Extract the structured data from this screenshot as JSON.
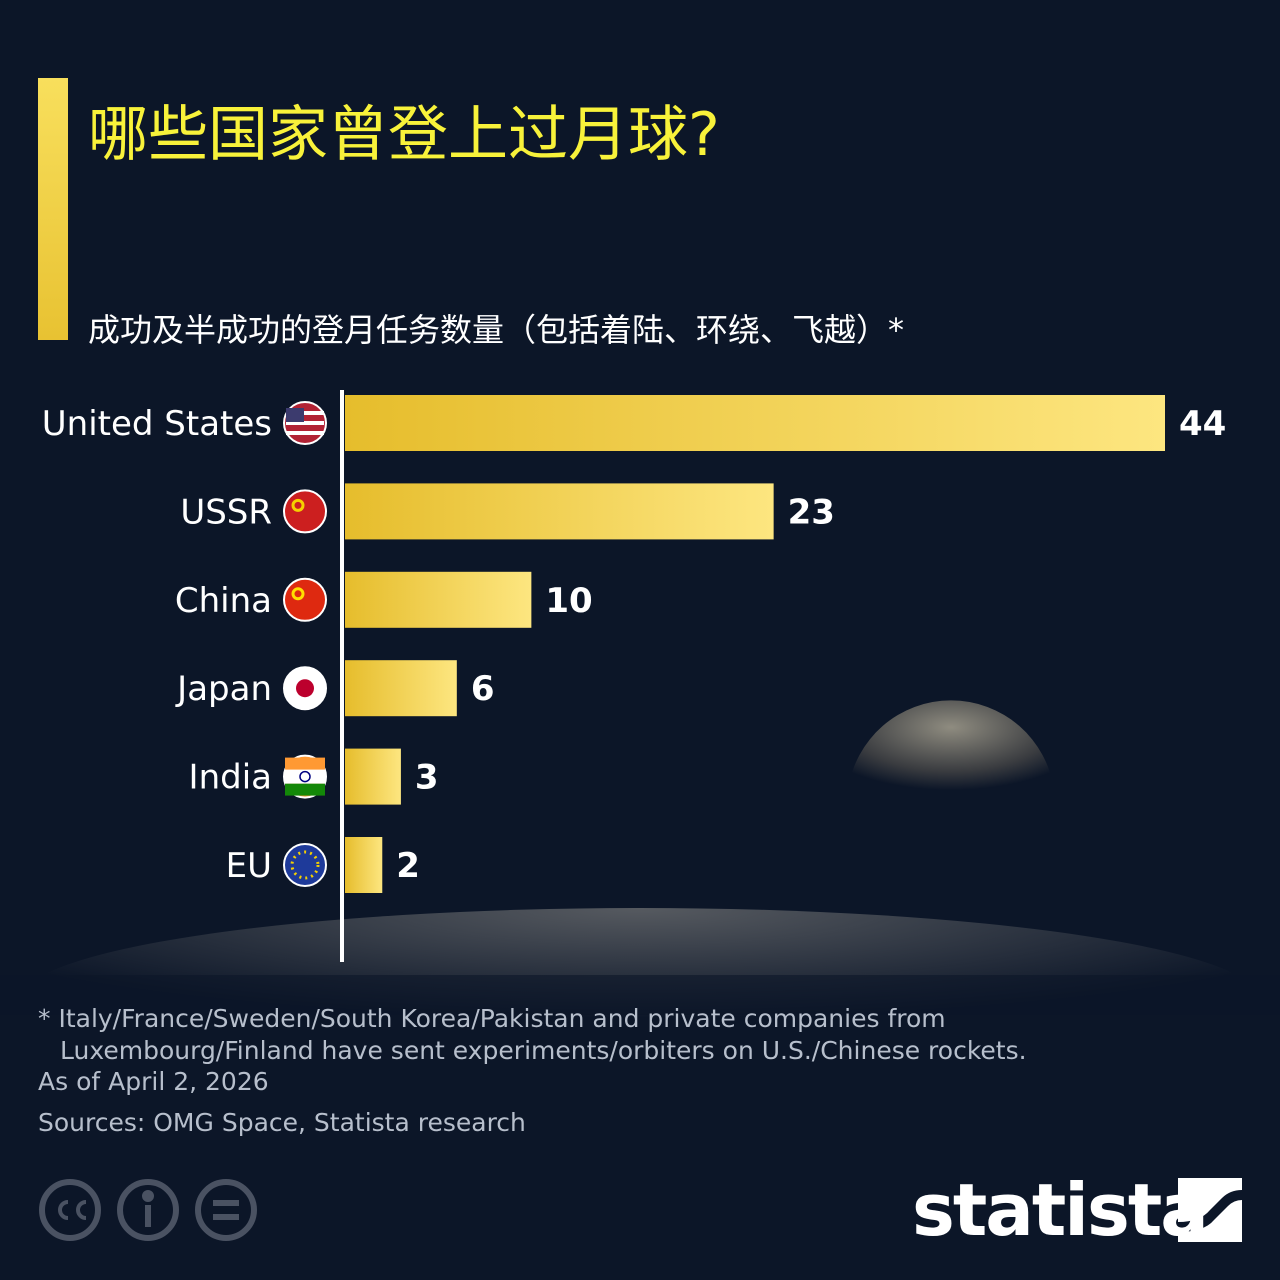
{
  "chart_data": {
    "type": "hbar",
    "title": "哪些国家曾登上过月球?",
    "subtitle": "成功及半成功的登月任务数量（包括着陆、环绕、飞越）*",
    "categories": [
      "United States",
      "USSR",
      "China",
      "Japan",
      "India",
      "EU"
    ],
    "values": [
      44,
      23,
      10,
      6,
      3,
      2
    ],
    "color": "#fde680",
    "footnote": "* Italy/France/Sweden/South Korea/Pakistan and private companies from Luxembourg/Finland have sent experiments/orbiters on U.S./Chinese rockets.",
    "date_note": "As of April 2, 2026",
    "source": "Sources: OMG Space, Statista research",
    "logo": "statista"
  }
}
